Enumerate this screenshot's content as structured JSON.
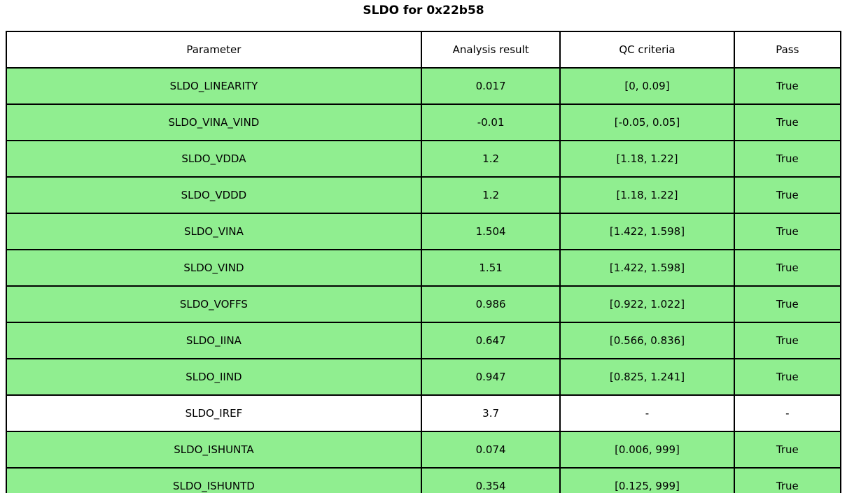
{
  "colors": {
    "pass_row_bg": "#90ee90",
    "neutral_row_bg": "#ffffff",
    "border": "#000000",
    "text": "#000000"
  },
  "chart_data": {
    "type": "table",
    "title": "SLDO for 0x22b58",
    "columns": [
      "Parameter",
      "Analysis result",
      "QC criteria",
      "Pass"
    ],
    "rows": [
      [
        "SLDO_LINEARITY",
        "0.017",
        "[0, 0.09]",
        "True"
      ],
      [
        "SLDO_VINA_VIND",
        "-0.01",
        "[-0.05, 0.05]",
        "True"
      ],
      [
        "SLDO_VDDA",
        "1.2",
        "[1.18, 1.22]",
        "True"
      ],
      [
        "SLDO_VDDD",
        "1.2",
        "[1.18, 1.22]",
        "True"
      ],
      [
        "SLDO_VINA",
        "1.504",
        "[1.422, 1.598]",
        "True"
      ],
      [
        "SLDO_VIND",
        "1.51",
        "[1.422, 1.598]",
        "True"
      ],
      [
        "SLDO_VOFFS",
        "0.986",
        "[0.922, 1.022]",
        "True"
      ],
      [
        "SLDO_IINA",
        "0.647",
        "[0.566, 0.836]",
        "True"
      ],
      [
        "SLDO_IIND",
        "0.947",
        "[0.825, 1.241]",
        "True"
      ],
      [
        "SLDO_IREF",
        "3.7",
        "-",
        "-"
      ],
      [
        "SLDO_ISHUNTA",
        "0.074",
        "[0.006, 999]",
        "True"
      ],
      [
        "SLDO_ISHUNTD",
        "0.354",
        "[0.125, 999]",
        "True"
      ]
    ],
    "row_highlight": [
      true,
      true,
      true,
      true,
      true,
      true,
      true,
      true,
      true,
      false,
      true,
      true
    ],
    "layout": {
      "header_bg": "#ffffff",
      "grid": "solid-black",
      "title_position": "top-center"
    }
  }
}
